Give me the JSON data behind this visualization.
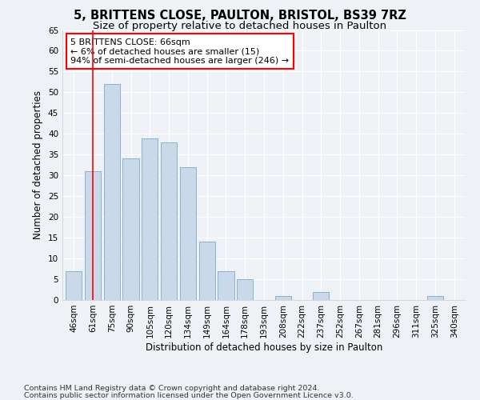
{
  "title_line1": "5, BRITTENS CLOSE, PAULTON, BRISTOL, BS39 7RZ",
  "title_line2": "Size of property relative to detached houses in Paulton",
  "xlabel": "Distribution of detached houses by size in Paulton",
  "ylabel": "Number of detached properties",
  "categories": [
    "46sqm",
    "61sqm",
    "75sqm",
    "90sqm",
    "105sqm",
    "120sqm",
    "134sqm",
    "149sqm",
    "164sqm",
    "178sqm",
    "193sqm",
    "208sqm",
    "222sqm",
    "237sqm",
    "252sqm",
    "267sqm",
    "281sqm",
    "296sqm",
    "311sqm",
    "325sqm",
    "340sqm"
  ],
  "values": [
    7,
    31,
    52,
    34,
    39,
    38,
    32,
    14,
    7,
    5,
    0,
    1,
    0,
    2,
    0,
    0,
    0,
    0,
    0,
    1,
    0
  ],
  "bar_color": "#c9d9ea",
  "bar_edge_color": "#7aaac8",
  "red_line_x": 1.0,
  "annotation_text": "5 BRITTENS CLOSE: 66sqm\n← 6% of detached houses are smaller (15)\n94% of semi-detached houses are larger (246) →",
  "annotation_box_color": "white",
  "annotation_box_edge_color": "red",
  "red_line_color": "red",
  "ylim": [
    0,
    65
  ],
  "yticks": [
    0,
    5,
    10,
    15,
    20,
    25,
    30,
    35,
    40,
    45,
    50,
    55,
    60,
    65
  ],
  "footer_line1": "Contains HM Land Registry data © Crown copyright and database right 2024.",
  "footer_line2": "Contains public sector information licensed under the Open Government Licence v3.0.",
  "bg_color": "#eef2f7",
  "plot_bg_color": "#eef2f7",
  "title_fontsize": 10.5,
  "subtitle_fontsize": 9.5,
  "axis_label_fontsize": 8.5,
  "tick_fontsize": 7.5,
  "footer_fontsize": 6.8,
  "annotation_fontsize": 8.0
}
